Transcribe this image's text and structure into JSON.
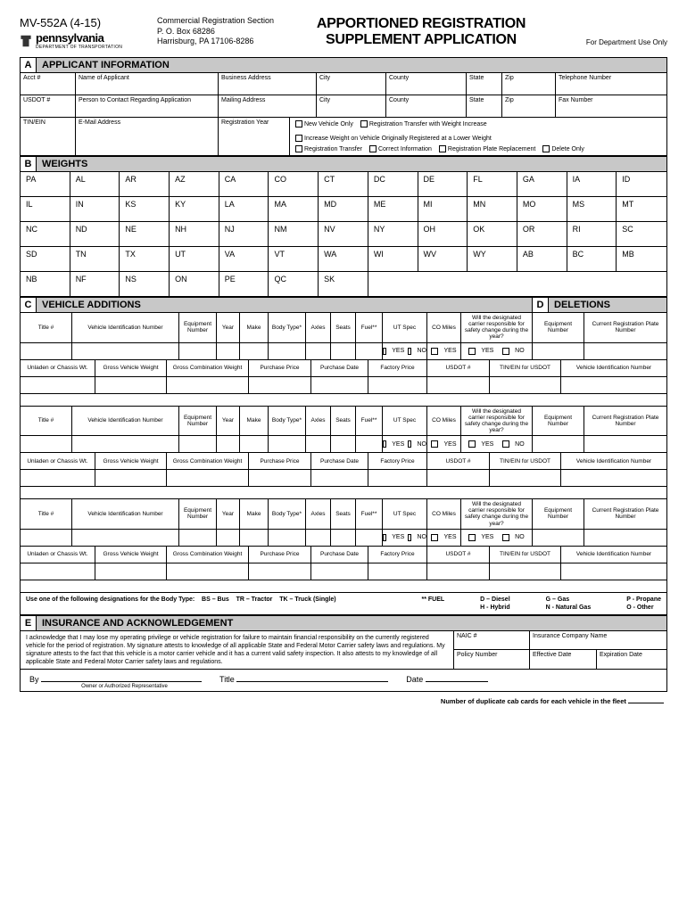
{
  "header": {
    "form_number": "MV-552A (4-15)",
    "state": "pennsylvania",
    "dept": "DEPARTMENT OF TRANSPORTATION",
    "addr_line1": "Commercial Registration Section",
    "addr_line2": "P. O. Box 68286",
    "addr_line3": "Harrisburg, PA 17106-8286",
    "title_line1": "APPORTIONED REGISTRATION",
    "title_line2": "SUPPLEMENT APPLICATION",
    "dept_only": "For Department Use Only"
  },
  "sections": {
    "A": "APPLICANT INFORMATION",
    "B": "WEIGHTS",
    "C": "VEHICLE ADDITIONS",
    "D": "DELETIONS",
    "E": "INSURANCE AND ACKNOWLEDGEMENT"
  },
  "applicant": {
    "acct": "Acct #",
    "name": "Name of Applicant",
    "bus_addr": "Business Address",
    "city": "City",
    "county": "County",
    "state": "State",
    "zip": "Zip",
    "tel": "Telephone Number",
    "usdot": "USDOT #",
    "contact": "Person to Contact Regarding Application",
    "mail_addr": "Mailing Address",
    "fax": "Fax Number",
    "tinein": "TIN/EIN",
    "email": "E-Mail Address",
    "reg_year": "Registration Year",
    "cb1": "New Vehicle Only",
    "cb2": "Registration Transfer with Weight Increase",
    "cb3": "Increase Weight on Vehicle Originally Registered at a Lower Weight",
    "cb4": "Registration Transfer",
    "cb5": "Correct Information",
    "cb6": "Registration Plate Replacement",
    "cb7": "Delete Only"
  },
  "weights_states": [
    "PA",
    "AL",
    "AR",
    "AZ",
    "CA",
    "CO",
    "CT",
    "DC",
    "DE",
    "FL",
    "GA",
    "IA",
    "ID",
    "IL",
    "IN",
    "KS",
    "KY",
    "LA",
    "MA",
    "MD",
    "ME",
    "MI",
    "MN",
    "MO",
    "MS",
    "MT",
    "NC",
    "ND",
    "NE",
    "NH",
    "NJ",
    "NM",
    "NV",
    "NY",
    "OH",
    "OK",
    "OR",
    "RI",
    "SC",
    "SD",
    "TN",
    "TX",
    "UT",
    "VA",
    "VT",
    "WA",
    "WI",
    "WV",
    "WY",
    "AB",
    "BC",
    "MB",
    "NB",
    "NF",
    "NS",
    "ON",
    "PE",
    "QC",
    "SK"
  ],
  "vehicle": {
    "title": "Title #",
    "vin": "Vehicle Identification Number",
    "equip": "Equipment Number",
    "year": "Year",
    "make": "Make",
    "body": "Body Type*",
    "axles": "Axles",
    "seats": "Seats",
    "fuel": "Fuel**",
    "utspec": "UT Spec",
    "comiles": "CO Miles",
    "carrier": "Will the designated carrier responsible for safety change during the year?",
    "yes": "YES",
    "no": "NO",
    "unladen": "Unladen or Chassis Wt.",
    "gvw": "Gross Vehicle Weight",
    "gcw": "Gross Combination Weight",
    "price": "Purchase Price",
    "pdate": "Purchase Date",
    "fprice": "Factory Price",
    "usdot2": "USDOT #",
    "tinein2": "TIN/EIN for USDOT",
    "equip2": "Equipment Number",
    "curplate": "Current Registration Plate Number",
    "vin2": "Vehicle Identification Number"
  },
  "fuel": {
    "body_text": "Use one of the following designations for the Body Type:",
    "bs": "BS – Bus",
    "tr": "TR – Tractor",
    "tk": "TK – Truck (Single)",
    "fuel_label": "** FUEL",
    "d": "D – Diesel",
    "h": "H - Hybrid",
    "g": "G – Gas",
    "n": "N - Natural Gas",
    "p": "P - Propane",
    "o": "O - Other"
  },
  "ack": {
    "text": "I acknowledge that I may lose my operating privilege or vehicle registration for failure to maintain financial responsibility on the currently registered vehicle for the period of registration. My signature attests to knowledge of all applicable State and Federal Motor Carrier safety laws and regulations. My signature attests to the fact that this vehicle is a motor carrier vehicle and it has a current valid safety inspection. It also attests to my knowledge of all applicable State and Federal Motor Carrier safety laws and regulations.",
    "naic": "NAIC #",
    "ins_name": "Insurance Company Name",
    "policy": "Policy Number",
    "eff_date": "Effective Date",
    "exp_date": "Expiration Date",
    "by": "By",
    "owner": "Owner or Authorized Representative",
    "title_lbl": "Title",
    "date_lbl": "Date",
    "dup": "Number of duplicate cab cards for each vehicle in the fleet"
  }
}
